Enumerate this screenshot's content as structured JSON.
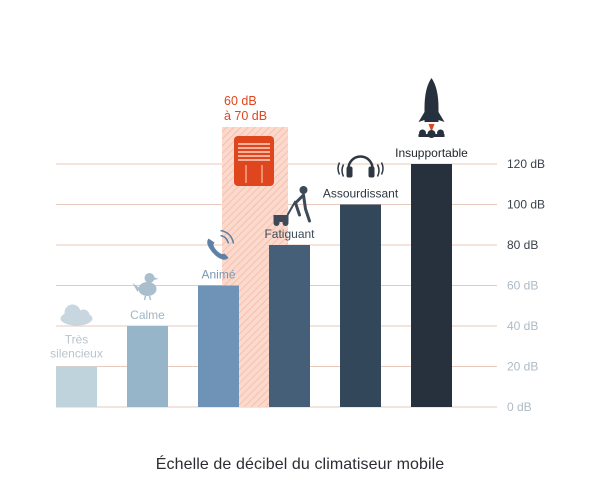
{
  "chart_data": {
    "type": "bar",
    "title": "Échelle de décibel du climatiseur mobile",
    "categories": [
      "Très silencieux",
      "Calme",
      "Animé",
      "Fatiguant",
      "Assourdissant",
      "Insupportable"
    ],
    "values": [
      20,
      40,
      60,
      80,
      100,
      120
    ],
    "yunit": "dB",
    "ylim": [
      0,
      120
    ],
    "yticks": [
      0,
      20,
      40,
      60,
      80,
      100,
      120
    ],
    "ytick_labels": [
      "0 dB",
      "20 dB",
      "40 dB",
      "60 dB",
      "80 dB",
      "100 dB",
      "120 dB"
    ],
    "bar_colors": [
      "#bfd3dc",
      "#96b5c9",
      "#6e93b6",
      "#465f78",
      "#33475a",
      "#27313e"
    ],
    "label_colors": [
      "#b9c4cc",
      "#a2b6c4",
      "#7699b6",
      "#3e4a57",
      "#2e3742",
      "#22282f"
    ],
    "icons": [
      "cloud-icon",
      "bird-icon",
      "phone-icon",
      "lawnmower-icon",
      "headphones-icon",
      "rocket-icon"
    ],
    "highlight": {
      "label_line1": "60 dB",
      "label_line2": "à 70 dB",
      "range": [
        60,
        70
      ],
      "color": "#e0461e",
      "icon": "air-conditioner-icon"
    },
    "grid": true,
    "legend": "none"
  }
}
